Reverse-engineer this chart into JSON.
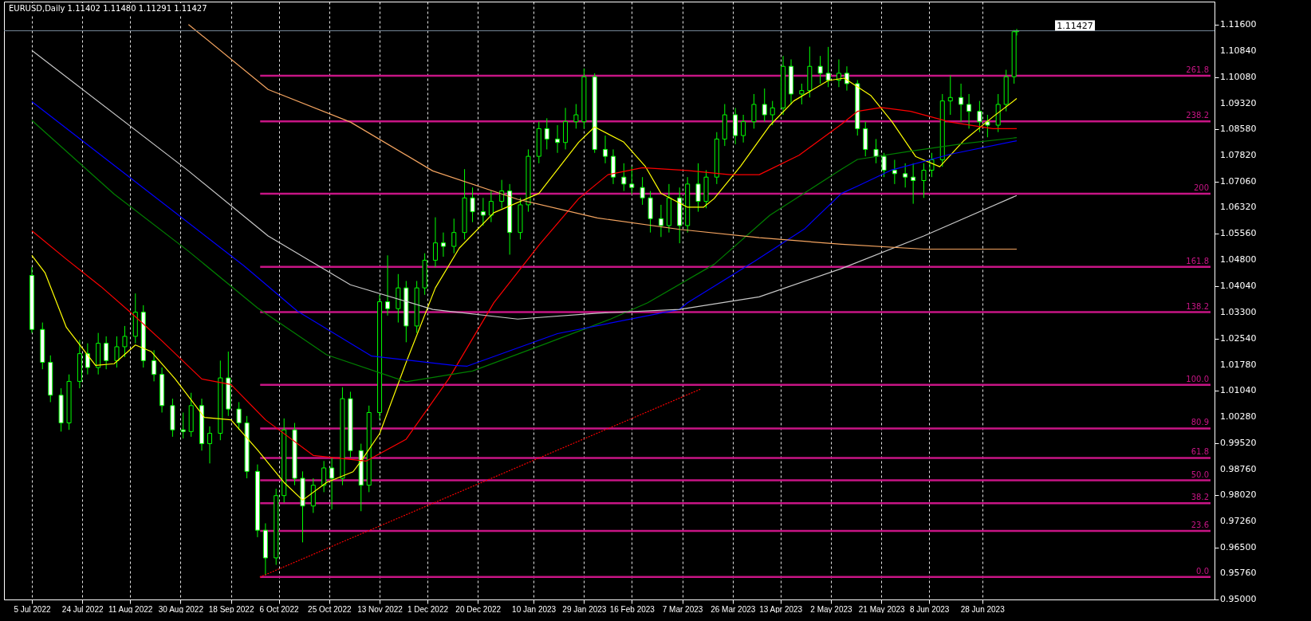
{
  "chart_data": {
    "type": "candlestick",
    "title": "EURUSD,Daily  1.11402 1.11480 1.11291 1.11427",
    "color": "#00ff00",
    "x": [
      "2022-07-05",
      "2022-07-09",
      "2022-07-12",
      "2022-07-16",
      "2022-07-19",
      "2022-07-23",
      "2022-07-26",
      "2022-07-30",
      "2022-08-02",
      "2022-08-06",
      "2022-08-09",
      "2022-08-13",
      "2022-08-16",
      "2022-08-20",
      "2022-08-23",
      "2022-08-27",
      "2022-08-31",
      "2022-09-03",
      "2022-09-07",
      "2022-09-10",
      "2022-09-14",
      "2022-09-17",
      "2022-09-21",
      "2022-09-24",
      "2022-09-28",
      "2022-10-01",
      "2022-10-05",
      "2022-10-08",
      "2022-10-12",
      "2022-10-15",
      "2022-10-19",
      "2022-10-23",
      "2022-10-26",
      "2022-10-30",
      "2022-11-02",
      "2022-11-06",
      "2022-11-09",
      "2022-11-13",
      "2022-11-16",
      "2022-11-20",
      "2022-11-23",
      "2022-11-27",
      "2022-11-30",
      "2022-12-04",
      "2022-12-07",
      "2022-12-11",
      "2022-12-15",
      "2022-12-18",
      "2022-12-22",
      "2022-12-25",
      "2022-12-29",
      "2023-01-01",
      "2023-01-05",
      "2023-01-08",
      "2023-01-12",
      "2023-01-15",
      "2023-01-19",
      "2023-01-22",
      "2023-01-26",
      "2023-01-29",
      "2023-02-02",
      "2023-02-06",
      "2023-02-09",
      "2023-02-13",
      "2023-02-16",
      "2023-02-20",
      "2023-02-23",
      "2023-02-27",
      "2023-03-02",
      "2023-03-06",
      "2023-03-09",
      "2023-03-13",
      "2023-03-16",
      "2023-03-20",
      "2023-03-23",
      "2023-03-27",
      "2023-03-30",
      "2023-04-03",
      "2023-04-07",
      "2023-04-10",
      "2023-04-14",
      "2023-04-17",
      "2023-04-21",
      "2023-04-24",
      "2023-04-28",
      "2023-05-01",
      "2023-05-05",
      "2023-05-08",
      "2023-05-12",
      "2023-05-15",
      "2023-05-19",
      "2023-05-22",
      "2023-05-26",
      "2023-05-30",
      "2023-06-02",
      "2023-06-06",
      "2023-06-09",
      "2023-06-13",
      "2023-06-16",
      "2023-06-20",
      "2023-06-23",
      "2023-06-27",
      "2023-06-30",
      "2023-07-04",
      "2023-07-07",
      "2023-07-10",
      "2023-07-11"
    ],
    "ohlc": [
      [
        1.0436,
        1.046,
        1.027,
        1.028
      ],
      [
        1.028,
        1.03,
        1.0165,
        1.0185
      ],
      [
        1.0185,
        1.0205,
        1.007,
        1.009
      ],
      [
        1.009,
        1.011,
        0.9985,
        1.001
      ],
      [
        1.001,
        1.015,
        0.999,
        1.013
      ],
      [
        1.013,
        1.025,
        1.011,
        1.021
      ],
      [
        1.021,
        1.024,
        1.015,
        1.017
      ],
      [
        1.017,
        1.027,
        1.015,
        1.024
      ],
      [
        1.024,
        1.026,
        1.0165,
        1.019
      ],
      [
        1.019,
        1.026,
        1.017,
        1.023
      ],
      [
        1.023,
        1.029,
        1.02,
        1.026
      ],
      [
        1.026,
        1.0384,
        1.024,
        1.033
      ],
      [
        1.033,
        1.035,
        1.017,
        1.019
      ],
      [
        1.019,
        1.022,
        1.013,
        1.015
      ],
      [
        1.015,
        1.017,
        1.004,
        1.006
      ],
      [
        1.006,
        1.008,
        0.997,
        0.999
      ],
      [
        0.999,
        1.004,
        0.9965,
        0.9985
      ],
      [
        0.9985,
        1.0097,
        0.997,
        1.006
      ],
      [
        1.006,
        1.008,
        0.993,
        0.995
      ],
      [
        0.995,
        1.0,
        0.9893,
        0.998
      ],
      [
        0.998,
        1.019,
        0.996,
        1.014
      ],
      [
        1.014,
        1.0216,
        1.003,
        1.005
      ],
      [
        1.005,
        1.007,
        0.999,
        1.001
      ],
      [
        1.001,
        1.003,
        0.985,
        0.987
      ],
      [
        0.987,
        0.989,
        0.968,
        0.97
      ],
      [
        0.97,
        0.972,
        0.957,
        0.962
      ],
      [
        0.962,
        0.982,
        0.96,
        0.98
      ],
      [
        0.98,
        1.0023,
        0.978,
        0.999
      ],
      [
        0.999,
        1.001,
        0.983,
        0.985
      ],
      [
        0.985,
        0.987,
        0.9665,
        0.977
      ],
      [
        0.977,
        0.985,
        0.975,
        0.983
      ],
      [
        0.983,
        0.99,
        0.981,
        0.988
      ],
      [
        0.988,
        0.991,
        0.976,
        0.985
      ],
      [
        0.985,
        1.0113,
        0.983,
        1.008
      ],
      [
        1.008,
        1.01,
        0.991,
        0.993
      ],
      [
        0.993,
        0.995,
        0.9755,
        0.983
      ],
      [
        0.983,
        1.006,
        0.981,
        1.004
      ],
      [
        1.004,
        1.038,
        1.002,
        1.036
      ],
      [
        1.036,
        1.0494,
        1.032,
        1.034
      ],
      [
        1.034,
        1.044,
        1.03,
        1.04
      ],
      [
        1.04,
        1.042,
        1.0243,
        1.029
      ],
      [
        1.029,
        1.042,
        1.027,
        1.04
      ],
      [
        1.04,
        1.05,
        1.038,
        1.048
      ],
      [
        1.048,
        1.0604,
        1.046,
        1.053
      ],
      [
        1.053,
        1.056,
        1.049,
        1.052
      ],
      [
        1.052,
        1.06,
        1.05,
        1.056
      ],
      [
        1.056,
        1.0743,
        1.054,
        1.066
      ],
      [
        1.066,
        1.069,
        1.059,
        1.062
      ],
      [
        1.062,
        1.066,
        1.058,
        1.061
      ],
      [
        1.061,
        1.068,
        1.059,
        1.065
      ],
      [
        1.065,
        1.0712,
        1.063,
        1.068
      ],
      [
        1.068,
        1.07,
        1.0496,
        1.056
      ],
      [
        1.056,
        1.066,
        1.054,
        1.064
      ],
      [
        1.064,
        1.08,
        1.062,
        1.078
      ],
      [
        1.078,
        1.088,
        1.076,
        1.086
      ],
      [
        1.086,
        1.089,
        1.08,
        1.083
      ],
      [
        1.083,
        1.087,
        1.079,
        1.082
      ],
      [
        1.082,
        1.092,
        1.08,
        1.088
      ],
      [
        1.088,
        1.0931,
        1.086,
        1.09
      ],
      [
        1.088,
        1.1034,
        1.086,
        1.101
      ],
      [
        1.101,
        1.102,
        1.079,
        1.08
      ],
      [
        1.08,
        1.084,
        1.076,
        1.078
      ],
      [
        1.078,
        1.08,
        1.07,
        1.072
      ],
      [
        1.072,
        1.076,
        1.068,
        1.07
      ],
      [
        1.07,
        1.075,
        1.067,
        1.069
      ],
      [
        1.069,
        1.072,
        1.064,
        1.066
      ],
      [
        1.066,
        1.068,
        1.056,
        1.06
      ],
      [
        1.06,
        1.064,
        1.0547,
        1.058
      ],
      [
        1.058,
        1.07,
        1.056,
        1.066
      ],
      [
        1.066,
        1.069,
        1.0529,
        1.058
      ],
      [
        1.058,
        1.072,
        1.056,
        1.07
      ],
      [
        1.07,
        1.076,
        1.062,
        1.065
      ],
      [
        1.065,
        1.074,
        1.063,
        1.072
      ],
      [
        1.072,
        1.085,
        1.07,
        1.083
      ],
      [
        1.083,
        1.0931,
        1.081,
        1.09
      ],
      [
        1.09,
        1.092,
        1.0815,
        1.084
      ],
      [
        1.084,
        1.09,
        1.082,
        1.088
      ],
      [
        1.088,
        1.096,
        1.086,
        1.093
      ],
      [
        1.093,
        1.0976,
        1.088,
        1.09
      ],
      [
        1.09,
        1.094,
        1.087,
        1.092
      ],
      [
        1.092,
        1.107,
        1.09,
        1.104
      ],
      [
        1.104,
        1.106,
        1.093,
        1.096
      ],
      [
        1.096,
        1.099,
        1.093,
        1.097
      ],
      [
        1.097,
        1.1097,
        1.095,
        1.104
      ],
      [
        1.104,
        1.107,
        1.099,
        1.102
      ],
      [
        1.102,
        1.1096,
        1.098,
        1.1
      ],
      [
        1.1,
        1.106,
        1.098,
        1.102
      ],
      [
        1.102,
        1.104,
        1.097,
        1.099
      ],
      [
        1.099,
        1.1,
        1.084,
        1.086
      ],
      [
        1.086,
        1.088,
        1.078,
        1.08
      ],
      [
        1.08,
        1.083,
        1.076,
        1.078
      ],
      [
        1.078,
        1.079,
        1.072,
        1.074
      ],
      [
        1.074,
        1.077,
        1.07,
        1.073
      ],
      [
        1.073,
        1.076,
        1.069,
        1.072
      ],
      [
        1.072,
        1.076,
        1.0643,
        1.071
      ],
      [
        1.071,
        1.076,
        1.066,
        1.074
      ],
      [
        1.074,
        1.079,
        1.072,
        1.077
      ],
      [
        1.077,
        1.096,
        1.075,
        1.094
      ],
      [
        1.094,
        1.1014,
        1.09,
        1.095
      ],
      [
        1.095,
        1.099,
        1.088,
        1.093
      ],
      [
        1.093,
        1.096,
        1.086,
        1.091
      ],
      [
        1.091,
        1.094,
        1.085,
        1.088
      ],
      [
        1.088,
        1.09,
        1.0835,
        1.087
      ],
      [
        1.087,
        1.096,
        1.085,
        1.093
      ],
      [
        1.093,
        1.103,
        1.091,
        1.101
      ],
      [
        1.101,
        1.1145,
        1.099,
        1.114
      ],
      [
        1.11402,
        1.1148,
        1.11291,
        1.11427
      ]
    ],
    "series": [
      {
        "type": "line",
        "color": "#ffff00",
        "x": [
          "2022-07-05",
          "2022-07-10",
          "2022-07-18",
          "2022-07-29",
          "2022-08-05",
          "2022-08-13",
          "2022-08-19",
          "2022-08-28",
          "2022-09-08",
          "2022-09-18",
          "2022-09-28",
          "2022-10-08",
          "2022-10-15",
          "2022-10-24",
          "2022-11-03",
          "2022-11-06",
          "2022-11-13",
          "2022-11-23",
          "2022-12-04",
          "2022-12-13",
          "2022-12-26",
          "2023-01-12",
          "2023-01-27",
          "2023-02-02",
          "2023-02-13",
          "2023-02-21",
          "2023-02-27",
          "2023-03-09",
          "2023-03-15",
          "2023-03-19",
          "2023-03-29",
          "2023-04-09",
          "2023-04-18",
          "2023-05-01",
          "2023-05-07",
          "2023-05-17",
          "2023-05-25",
          "2023-06-03",
          "2023-06-12",
          "2023-06-21",
          "2023-07-02",
          "2023-07-11"
        ],
        "values": [
          1.0494,
          1.0443,
          1.0286,
          1.0176,
          1.0181,
          1.0235,
          1.0216,
          1.0137,
          1.0026,
          1.0019,
          0.9932,
          0.9838,
          0.9787,
          0.9838,
          0.9869,
          0.99,
          0.9979,
          1.0185,
          1.04,
          1.0515,
          1.0617,
          1.0673,
          1.0821,
          1.0865,
          1.0821,
          1.0752,
          1.0673,
          1.0633,
          1.0633,
          1.0658,
          1.0752,
          1.0869,
          1.094,
          1.0999,
          1.1006,
          1.0956,
          1.088,
          1.0779,
          1.075,
          1.0825,
          1.0894,
          1.0947
        ]
      },
      {
        "type": "line",
        "color": "#ff0000",
        "x": [
          "2022-07-05",
          "2022-07-18",
          "2022-07-31",
          "2022-08-13",
          "2022-08-23",
          "2022-09-07",
          "2022-09-18",
          "2022-10-01",
          "2022-10-19",
          "2022-11-08",
          "2022-11-23",
          "2022-12-09",
          "2022-12-26",
          "2023-01-12",
          "2023-01-27",
          "2023-02-07",
          "2023-02-20",
          "2023-03-09",
          "2023-03-25",
          "2023-04-05",
          "2023-04-20",
          "2023-05-06",
          "2023-05-12",
          "2023-05-21",
          "2023-06-01",
          "2023-06-16",
          "2023-07-02",
          "2023-07-11"
        ],
        "values": [
          1.0565,
          1.0483,
          1.0404,
          1.0317,
          1.0247,
          1.0137,
          1.0121,
          1.0019,
          0.9916,
          0.99,
          0.9963,
          1.0137,
          1.0357,
          1.0523,
          1.0658,
          1.0727,
          1.0747,
          1.0739,
          1.0727,
          1.0727,
          1.0783,
          1.0873,
          1.091,
          1.0921,
          1.091,
          1.0879,
          1.086,
          1.086
        ]
      },
      {
        "type": "line",
        "color": "#008000",
        "x": [
          "2022-07-05",
          "2022-08-05",
          "2022-09-02",
          "2022-09-28",
          "2022-10-24",
          "2022-11-23",
          "2022-12-18",
          "2023-01-15",
          "2023-02-08",
          "2023-02-22",
          "2023-03-19",
          "2023-04-09",
          "2023-04-22",
          "2023-05-06",
          "2023-05-12",
          "2023-06-01",
          "2023-06-21",
          "2023-07-11"
        ],
        "values": [
          1.0884,
          1.0671,
          1.0506,
          1.0342,
          1.0207,
          1.0129,
          1.016,
          1.024,
          1.031,
          1.0357,
          1.0468,
          1.061,
          1.0674,
          1.0743,
          1.0771,
          1.0795,
          1.0817,
          1.0834
        ]
      },
      {
        "type": "line",
        "color": "#0000ff",
        "x": [
          "2022-07-05",
          "2022-08-19",
          "2022-09-23",
          "2022-10-13",
          "2022-11-10",
          "2022-12-11",
          "2022-12-16",
          "2023-01-19",
          "2023-03-06",
          "2023-03-09",
          "2023-04-03",
          "2023-04-22",
          "2023-05-06",
          "2023-05-12",
          "2023-05-25",
          "2023-06-16",
          "2023-07-11"
        ],
        "values": [
          1.0938,
          1.0671,
          1.0463,
          1.0333,
          1.0203,
          1.0176,
          1.0174,
          1.0268,
          1.0338,
          1.0357,
          1.0476,
          1.057,
          1.0673,
          1.0694,
          1.0741,
          1.0786,
          1.0825
        ]
      },
      {
        "type": "line",
        "color": "#c8c8c8",
        "x": [
          "2022-07-05",
          "2022-09-02",
          "2022-10-02",
          "2022-11-02",
          "2022-12-03",
          "2023-01-04",
          "2023-02-03",
          "2023-03-06",
          "2023-04-05",
          "2023-05-06",
          "2023-06-06",
          "2023-07-11"
        ],
        "values": [
          1.1086,
          1.0738,
          1.055,
          1.0409,
          1.0338,
          1.031,
          1.0327,
          1.0338,
          1.0374,
          1.0456,
          1.055,
          1.0667
        ]
      },
      {
        "type": "line",
        "color": "#f4a460",
        "x": [
          "2022-09-02",
          "2022-10-02",
          "2022-11-02",
          "2022-12-03",
          "2023-01-04",
          "2023-02-03",
          "2023-03-06",
          "2023-04-05",
          "2023-05-06",
          "2023-06-06",
          "2023-07-11"
        ],
        "values": [
          1.1161,
          1.0973,
          1.0879,
          1.0738,
          1.0656,
          1.0602,
          1.0569,
          1.0545,
          1.0526,
          1.0512,
          1.0512
        ]
      },
      {
        "type": "line",
        "color": "#ff0000",
        "line_style": "dotted",
        "x": [
          "2022-09-29",
          "2023-03-14"
        ],
        "values": [
          0.9565,
          1.0108
        ]
      },
      {
        "type": "line",
        "name": "261.8",
        "color": "#c71585",
        "x": [
          "2022-09-29",
          "2023-09-22"
        ],
        "values": [
          1.1013,
          1.1013
        ]
      },
      {
        "type": "line",
        "name": "238.2",
        "color": "#c71585",
        "x": [
          "2022-09-29",
          "2023-09-22"
        ],
        "values": [
          1.0881,
          1.0881
        ]
      },
      {
        "type": "line",
        "name": "200",
        "color": "#c71585",
        "x": [
          "2022-09-29",
          "2023-09-22"
        ],
        "values": [
          1.0672,
          1.0672
        ]
      },
      {
        "type": "line",
        "name": "161.8",
        "color": "#c71585",
        "x": [
          "2022-09-29",
          "2023-09-22"
        ],
        "values": [
          1.0461,
          1.0461
        ]
      },
      {
        "type": "line",
        "name": "138.2",
        "color": "#c71585",
        "x": [
          "2022-09-29",
          "2023-09-22"
        ],
        "values": [
          1.033,
          1.033
        ]
      },
      {
        "type": "line",
        "name": "100.0",
        "color": "#c71585",
        "x": [
          "2022-09-29",
          "2023-09-22"
        ],
        "values": [
          1.012,
          1.012
        ]
      },
      {
        "type": "line",
        "name": "80.9",
        "color": "#c71585",
        "x": [
          "2022-09-29",
          "2023-09-22"
        ],
        "values": [
          0.9994,
          0.9994
        ]
      },
      {
        "type": "line",
        "name": "61.8",
        "color": "#c71585",
        "x": [
          "2022-09-29",
          "2023-09-22"
        ],
        "values": [
          0.9909,
          0.9909
        ]
      },
      {
        "type": "line",
        "name": "50.0",
        "color": "#c71585",
        "x": [
          "2022-09-29",
          "2023-09-22"
        ],
        "values": [
          0.9844,
          0.9844
        ]
      },
      {
        "type": "line",
        "name": "38.2",
        "color": "#c71585",
        "x": [
          "2022-09-29",
          "2023-09-22"
        ],
        "values": [
          0.9778,
          0.9778
        ]
      },
      {
        "type": "line",
        "name": "23.6",
        "color": "#c71585",
        "x": [
          "2022-09-29",
          "2023-09-22"
        ],
        "values": [
          0.9698,
          0.9698
        ]
      },
      {
        "type": "line",
        "name": "0.0",
        "color": "#c71585",
        "x": [
          "2022-09-29",
          "2023-09-22"
        ],
        "values": [
          0.9565,
          0.9565
        ]
      }
    ],
    "ref_lines": [
      {
        "axis": "y",
        "value": 1.11427,
        "label": "1.11427",
        "color": "#778899"
      }
    ],
    "xlim": [
      "2022-06-26",
      "2023-09-22"
    ],
    "xticks": [
      {
        "value": "2022-07-05",
        "label": "5 Jul 2022"
      },
      {
        "value": "2022-07-24",
        "label": "24 Jul 2022"
      },
      {
        "value": "2022-08-11",
        "label": "11 Aug 2022"
      },
      {
        "value": "2022-08-30",
        "label": "30 Aug 2022"
      },
      {
        "value": "2022-09-18",
        "label": "18 Sep 2022"
      },
      {
        "value": "2022-10-06",
        "label": "6 Oct 2022"
      },
      {
        "value": "2022-10-25",
        "label": "25 Oct 2022"
      },
      {
        "value": "2022-11-13",
        "label": "13 Nov 2022"
      },
      {
        "value": "2022-12-01",
        "label": "1 Dec 2022"
      },
      {
        "value": "2022-12-20",
        "label": "20 Dec 2022"
      },
      {
        "value": "2023-01-10",
        "label": "10 Jan 2023"
      },
      {
        "value": "2023-01-29",
        "label": "29 Jan 2023"
      },
      {
        "value": "2023-02-16",
        "label": "16 Feb 2023"
      },
      {
        "value": "2023-03-07",
        "label": "7 Mar 2023"
      },
      {
        "value": "2023-03-26",
        "label": "26 Mar 2023"
      },
      {
        "value": "2023-04-13",
        "label": "13 Apr 2023"
      },
      {
        "value": "2023-05-02",
        "label": "2 May 2023"
      },
      {
        "value": "2023-05-21",
        "label": "21 May 2023"
      },
      {
        "value": "2023-06-08",
        "label": "8 Jun 2023"
      },
      {
        "value": "2023-06-28",
        "label": "28 Jun 2023"
      }
    ],
    "ylim": [
      0.95,
      1.1227
    ],
    "yticks": [
      {
        "value": 1.116,
        "label": "1.11600"
      },
      {
        "value": 1.1084,
        "label": "1.10840"
      },
      {
        "value": 1.1008,
        "label": "1.10080"
      },
      {
        "value": 1.0932,
        "label": "1.09320"
      },
      {
        "value": 1.0858,
        "label": "1.08580"
      },
      {
        "value": 1.0782,
        "label": "1.07820"
      },
      {
        "value": 1.0706,
        "label": "1.07060"
      },
      {
        "value": 1.0632,
        "label": "1.06320"
      },
      {
        "value": 1.0556,
        "label": "1.05560"
      },
      {
        "value": 1.048,
        "label": "1.04800"
      },
      {
        "value": 1.0404,
        "label": "1.04040"
      },
      {
        "value": 1.033,
        "label": "1.03300"
      },
      {
        "value": 1.0254,
        "label": "1.02540"
      },
      {
        "value": 1.0178,
        "label": "1.01780"
      },
      {
        "value": 1.0104,
        "label": "1.01040"
      },
      {
        "value": 1.0028,
        "label": "1.00280"
      },
      {
        "value": 0.9952,
        "label": "0.99520"
      },
      {
        "value": 0.9876,
        "label": "0.98760"
      },
      {
        "value": 0.9802,
        "label": "0.98020"
      },
      {
        "value": 0.9726,
        "label": "0.97260"
      },
      {
        "value": 0.965,
        "label": "0.96500"
      },
      {
        "value": 0.9576,
        "label": "0.95760"
      },
      {
        "value": 0.95,
        "label": "0.95000"
      }
    ],
    "grid": "x"
  }
}
